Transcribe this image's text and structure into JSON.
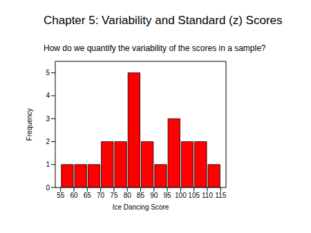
{
  "chart_data": {
    "type": "histogram",
    "title": "Chapter 5: Variability and Standard (z) Scores",
    "subtitle": "How do we quantify the variability of the scores in a sample?",
    "x_label": "Ice Dancing Score",
    "y_label": "Frequency",
    "bins": [
      55,
      60,
      65,
      70,
      75,
      80,
      85,
      90,
      95,
      100,
      105,
      110,
      115
    ],
    "values": [
      1,
      1,
      1,
      2,
      2,
      5,
      2,
      1,
      3,
      2,
      2,
      1
    ],
    "color": "#ff0000",
    "xlim": [
      53,
      117
    ],
    "xticks": [
      55,
      60,
      65,
      70,
      75,
      80,
      85,
      90,
      95,
      100,
      105,
      110,
      115
    ],
    "ylim": [
      0,
      5.5
    ],
    "yticks": [
      0,
      1,
      2,
      3,
      4,
      5
    ]
  }
}
